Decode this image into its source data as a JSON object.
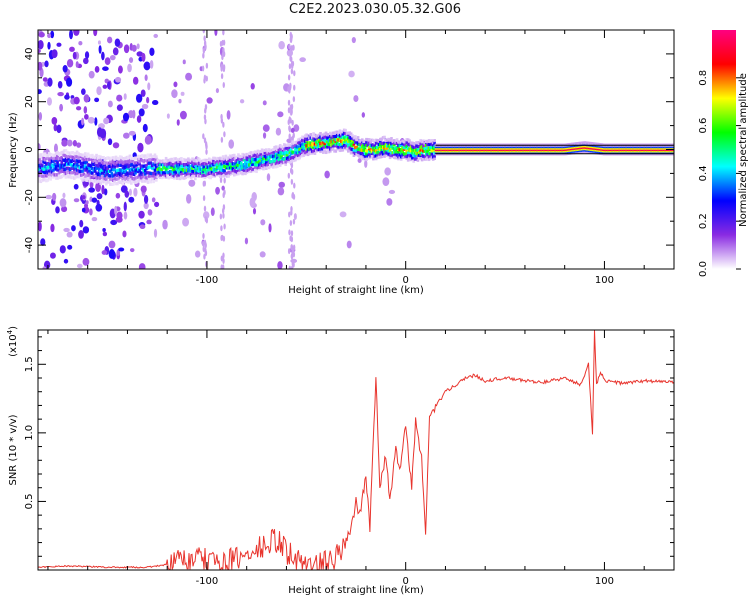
{
  "title": "C2E2.2023.030.05.32.G06",
  "chart_data": [
    {
      "type": "heatmap",
      "xlabel": "Height of straight line (km)",
      "ylabel": "Frequency (Hz)",
      "xlim": [
        -185,
        135
      ],
      "ylim": [
        -50,
        50
      ],
      "xticks": [
        -100,
        0,
        100
      ],
      "yticks": [
        -40,
        -20,
        0,
        20,
        40
      ],
      "colorbar": {
        "label": "Normalized spectral amplitude",
        "ticks": [
          "0.0",
          "0.2",
          "0.4",
          "0.6",
          "0.8"
        ],
        "range": [
          0,
          1
        ],
        "colors": [
          "#ffffff",
          "#8a2be2",
          "#0000ff",
          "#00ffff",
          "#00ff00",
          "#ffff00",
          "#ff0000",
          "#ff0080"
        ]
      },
      "ridge": {
        "x": [
          -185,
          -170,
          -150,
          -130,
          -120,
          -100,
          -80,
          -60,
          -50,
          -40,
          -30,
          -25,
          -20,
          -15,
          -10,
          -5,
          0,
          5,
          10,
          20,
          40,
          60,
          80,
          90,
          100,
          135
        ],
        "freq": [
          -8,
          -6,
          -9,
          -8,
          -8,
          -8,
          -6,
          -2,
          2,
          3,
          4,
          1,
          0,
          0,
          1,
          0,
          0,
          -1,
          0,
          0,
          0,
          0,
          0,
          1,
          0,
          0
        ]
      }
    },
    {
      "type": "line",
      "xlabel": "Height of straight line (km)",
      "ylabel": "SNR (10 * v/v)",
      "scale_label": "(x10",
      "scale_exp": "4",
      "xlim": [
        -185,
        135
      ],
      "ylim": [
        0,
        1.75
      ],
      "xticks": [
        -100,
        0,
        100
      ],
      "yticks": [
        0.5,
        1.0,
        1.5
      ],
      "ytick_labels": [
        "0.5",
        "1.0",
        "1.5"
      ],
      "color": "#e8352e",
      "series": [
        {
          "name": "SNR",
          "x": [
            -185,
            -170,
            -150,
            -130,
            -115,
            -110,
            -100,
            -90,
            -80,
            -70,
            -65,
            -60,
            -55,
            -50,
            -45,
            -40,
            -35,
            -30,
            -27,
            -25,
            -23,
            -20,
            -18,
            -15,
            -13,
            -10,
            -8,
            -5,
            -3,
            0,
            3,
            5,
            8,
            10,
            12,
            15,
            18,
            20,
            25,
            30,
            35,
            40,
            50,
            60,
            70,
            80,
            88,
            92,
            94,
            95,
            96,
            98,
            100,
            110,
            120,
            135
          ],
          "y": [
            0.02,
            0.03,
            0.02,
            0.02,
            0.05,
            0.08,
            0.06,
            0.05,
            0.1,
            0.18,
            0.22,
            0.14,
            0.06,
            0.04,
            0.02,
            0.05,
            0.08,
            0.2,
            0.35,
            0.5,
            0.4,
            0.7,
            0.3,
            1.43,
            0.6,
            0.85,
            0.5,
            0.9,
            0.7,
            1.05,
            0.6,
            1.1,
            0.8,
            0.25,
            1.1,
            1.2,
            1.25,
            1.3,
            1.35,
            1.4,
            1.42,
            1.38,
            1.4,
            1.38,
            1.37,
            1.4,
            1.35,
            1.5,
            1.0,
            1.75,
            1.35,
            1.45,
            1.38,
            1.36,
            1.38,
            1.37
          ]
        }
      ]
    }
  ]
}
